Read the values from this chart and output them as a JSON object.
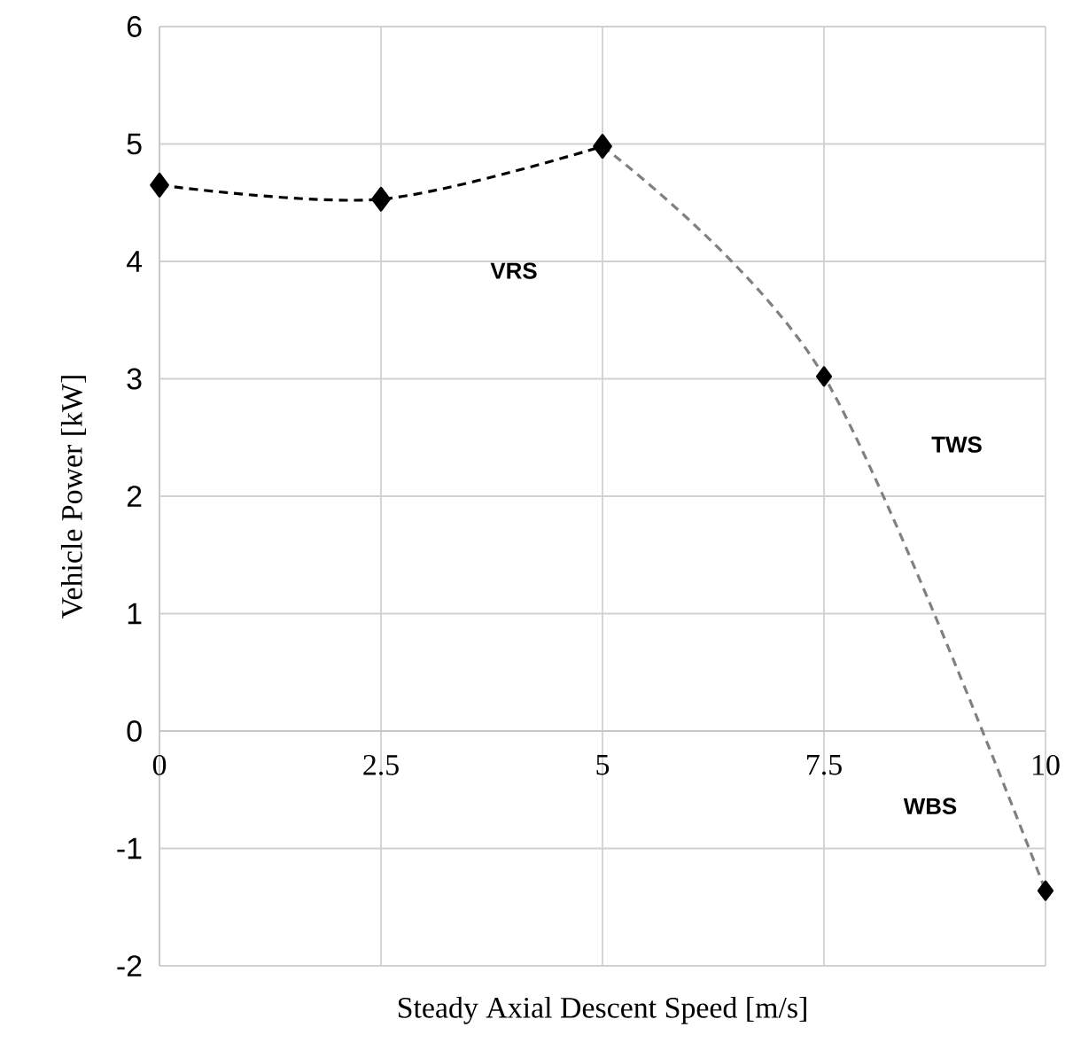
{
  "chart_data": {
    "type": "line",
    "xlabel": "Steady Axial Descent Speed [m/s]",
    "ylabel": "Vehicle Power [kW]",
    "xlim": [
      0,
      10
    ],
    "xticks": [
      0,
      2.5,
      5,
      7.5,
      10
    ],
    "ylim": [
      -2,
      6
    ],
    "yticks": [
      -2,
      -1,
      0,
      1,
      2,
      3,
      4,
      5,
      6
    ],
    "grid": true,
    "marker": "diamond",
    "line_style": "dashed",
    "legend": false,
    "series": [
      {
        "color": "#000000",
        "x": [
          0,
          2.5,
          5
        ],
        "values": [
          4.65,
          4.53,
          4.98
        ]
      },
      {
        "color": "#808080",
        "x": [
          5,
          7.5,
          10
        ],
        "values": [
          4.98,
          3.02,
          -1.36
        ]
      }
    ],
    "annotations": [
      "VRS",
      "TWS",
      "WBS"
    ]
  }
}
